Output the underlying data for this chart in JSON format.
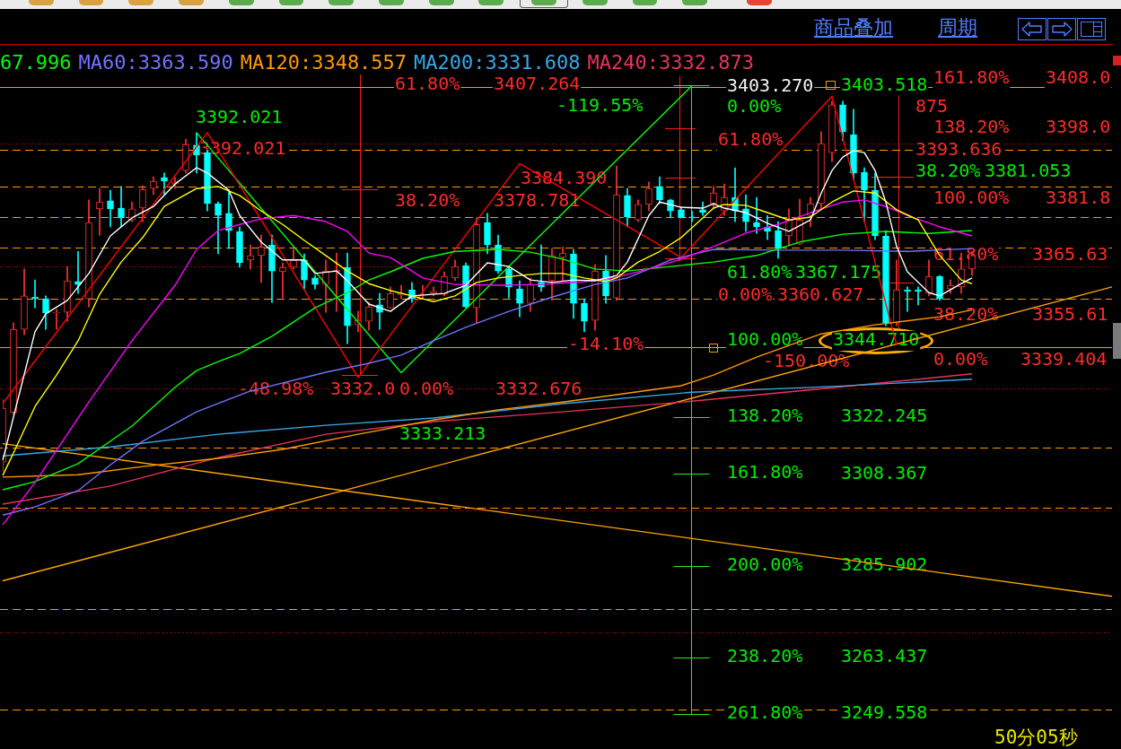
{
  "chart_data": {
    "type": "candlestick",
    "categories": [
      null,
      null,
      null,
      null,
      null,
      null,
      null,
      null,
      null,
      null,
      null,
      null,
      null,
      null,
      null,
      null,
      null,
      null,
      null,
      null,
      null,
      null,
      null,
      null,
      null,
      null,
      null,
      null,
      null,
      null,
      null,
      null,
      null,
      null,
      null,
      null,
      null,
      null,
      null,
      null,
      null,
      null,
      null,
      null,
      null,
      null,
      null,
      null,
      null,
      null,
      null,
      null,
      null,
      null,
      null,
      null,
      null,
      null,
      null,
      null,
      null,
      null,
      null,
      null,
      null,
      null,
      null,
      null,
      null,
      null,
      null,
      null,
      null,
      null,
      null,
      null,
      null,
      null,
      null,
      null,
      null,
      null,
      null,
      null,
      null,
      null,
      null,
      null,
      null,
      null,
      null,
      null,
      null,
      null,
      null,
      null,
      null,
      null,
      null,
      null,
      null,
      null,
      null,
      null
    ],
    "ohlc": [
      [
        3311.3,
        3326.7,
        3309.1,
        3324.5
      ],
      [
        3323.4,
        3345.4,
        3323.0,
        3343.8
      ],
      [
        3343.8,
        3358.6,
        3342.5,
        3352.0
      ],
      [
        3351.7,
        3355.9,
        3349.1,
        3351.3
      ],
      [
        3351.3,
        3352.0,
        3343.8,
        3347.8
      ],
      [
        3347.8,
        3348.7,
        3343.8,
        3348.0
      ],
      [
        3348.0,
        3359.2,
        3345.8,
        3355.7
      ],
      [
        3355.5,
        3362.9,
        3352.6,
        3354.8
      ],
      [
        3351.3,
        3375.5,
        3349.3,
        3370.0
      ],
      [
        3373.3,
        3378.3,
        3366.9,
        3375.0
      ],
      [
        3375.3,
        3377.9,
        3368.9,
        3373.3
      ],
      [
        3373.5,
        3378.8,
        3368.9,
        3371.1
      ],
      [
        3370.6,
        3375.0,
        3370.2,
        3373.3
      ],
      [
        3373.5,
        3379.0,
        3370.2,
        3378.1
      ],
      [
        3378.3,
        3381.2,
        3376.8,
        3380.1
      ],
      [
        3381.0,
        3382.1,
        3376.8,
        3380.1
      ],
      [
        3379.4,
        3381.0,
        3378.3,
        3379.9
      ],
      [
        3382.7,
        3390.4,
        3382.1,
        3389.1
      ],
      [
        3388.9,
        3392.0,
        3382.1,
        3386.5
      ],
      [
        3387.1,
        3387.6,
        3372.8,
        3374.6
      ],
      [
        3374.6,
        3375.0,
        3362.3,
        3371.7
      ],
      [
        3372.2,
        3377.7,
        3363.6,
        3368.0
      ],
      [
        3367.8,
        3368.9,
        3359.0,
        3360.1
      ],
      [
        3360.8,
        3364.5,
        3358.6,
        3361.9
      ],
      [
        3361.9,
        3366.9,
        3355.3,
        3364.0
      ],
      [
        3364.5,
        3366.9,
        3350.4,
        3358.1
      ],
      [
        3357.9,
        3360.1,
        3351.5,
        3359.0
      ],
      [
        3359.0,
        3364.0,
        3358.6,
        3360.8
      ],
      [
        3360.8,
        3362.3,
        3353.7,
        3355.9
      ],
      [
        3356.4,
        3357.0,
        3353.7,
        3354.8
      ],
      [
        3354.8,
        3360.8,
        3348.0,
        3358.1
      ],
      [
        3357.9,
        3362.5,
        3348.2,
        3358.3
      ],
      [
        3359.0,
        3362.5,
        3340.3,
        3344.7
      ],
      [
        3344.9,
        3348.2,
        3343.2,
        3346.0
      ],
      [
        3345.8,
        3350.4,
        3343.6,
        3349.3
      ],
      [
        3349.8,
        3352.6,
        3343.8,
        3348.0
      ],
      [
        3349.1,
        3354.2,
        3349.1,
        3352.6
      ],
      [
        3352.2,
        3354.6,
        3351.3,
        3352.6
      ],
      [
        3353.5,
        3355.3,
        3350.4,
        3351.3
      ],
      [
        3352.2,
        3354.6,
        3351.3,
        3352.4
      ],
      [
        3352.6,
        3354.2,
        3352.0,
        3353.1
      ],
      [
        3352.4,
        3357.9,
        3352.0,
        3356.8
      ],
      [
        3356.4,
        3360.8,
        3355.7,
        3359.2
      ],
      [
        3359.4,
        3360.1,
        3349.1,
        3349.3
      ],
      [
        3349.1,
        3371.1,
        3345.4,
        3369.5
      ],
      [
        3370.0,
        3372.2,
        3362.3,
        3364.5
      ],
      [
        3364.5,
        3366.9,
        3357.5,
        3358.1
      ],
      [
        3358.6,
        3359.2,
        3351.5,
        3354.2
      ],
      [
        3353.7,
        3355.7,
        3346.9,
        3350.2
      ],
      [
        3350.2,
        3356.4,
        3348.2,
        3354.8
      ],
      [
        3355.3,
        3364.5,
        3353.1,
        3354.2
      ],
      [
        3355.7,
        3363.6,
        3350.9,
        3361.9
      ],
      [
        3361.4,
        3364.0,
        3355.7,
        3362.5
      ],
      [
        3362.3,
        3363.4,
        3346.5,
        3350.2
      ],
      [
        3350.2,
        3351.3,
        3343.2,
        3345.8
      ],
      [
        3346.0,
        3359.7,
        3343.6,
        3358.1
      ],
      [
        3358.1,
        3361.9,
        3350.2,
        3352.0
      ],
      [
        3351.5,
        3383.8,
        3350.9,
        3376.8
      ],
      [
        3376.6,
        3378.3,
        3368.9,
        3371.3
      ],
      [
        3370.6,
        3375.5,
        3370.2,
        3374.4
      ],
      [
        3374.4,
        3379.9,
        3372.8,
        3378.3
      ],
      [
        3378.8,
        3381.2,
        3374.6,
        3375.5
      ],
      [
        3375.5,
        3375.7,
        3371.1,
        3372.8
      ],
      [
        3373.1,
        3373.9,
        3371.1,
        3371.1
      ],
      [
        3371.3,
        3372.8,
        3370.2,
        3371.1
      ],
      [
        3373.1,
        3375.0,
        3371.7,
        3372.4
      ],
      [
        3374.6,
        3378.8,
        3373.3,
        3377.2
      ],
      [
        3372.8,
        3379.4,
        3371.7,
        3376.1
      ],
      [
        3376.1,
        3383.4,
        3370.2,
        3372.8
      ],
      [
        3373.3,
        3376.8,
        3367.8,
        3370.2
      ],
      [
        3370.0,
        3376.1,
        3367.3,
        3368.9
      ],
      [
        3368.9,
        3371.7,
        3365.8,
        3367.8
      ],
      [
        3368.0,
        3370.2,
        3361.2,
        3363.6
      ],
      [
        3366.7,
        3373.3,
        3364.5,
        3370.6
      ],
      [
        3364.7,
        3375.7,
        3364.5,
        3370.6
      ],
      [
        3371.7,
        3376.1,
        3368.9,
        3374.6
      ],
      [
        3374.6,
        3392.2,
        3373.3,
        3389.3
      ],
      [
        3387.1,
        3399.7,
        3384.9,
        3398.8
      ],
      [
        3398.8,
        3399.7,
        3390.0,
        3392.2
      ],
      [
        3391.5,
        3397.7,
        3380.5,
        3382.1
      ],
      [
        3382.3,
        3383.4,
        3370.2,
        3377.9
      ],
      [
        3377.9,
        3382.1,
        3365.8,
        3366.7
      ],
      [
        3366.7,
        3368.0,
        3344.7,
        3345.4
      ],
      [
        3345.4,
        3360.8,
        3344.7,
        3353.5
      ],
      [
        3353.5,
        3354.2,
        3348.2,
        3353.1
      ],
      [
        3353.5,
        3354.2,
        3349.8,
        3353.1
      ],
      [
        3352.6,
        3360.8,
        3352.0,
        3356.8
      ],
      [
        3356.8,
        3357.0,
        3350.9,
        3351.3
      ],
      [
        3353.7,
        3355.9,
        3352.6,
        3354.6
      ],
      [
        3354.2,
        3362.5,
        3352.6,
        3358.6
      ],
      [
        3358.6,
        3362.9,
        3357.0,
        3361.9
      ],
      null,
      null,
      null,
      null,
      null,
      null,
      null,
      null,
      null,
      null,
      null,
      null,
      null
    ],
    "colors": [
      "#ff3232",
      "#ff3232",
      "#ff3232",
      "#00ffff",
      "#00ffff",
      "#ff3232",
      "#ff3232",
      "#00ffff",
      "#ff3232",
      "#ff3232",
      "#00ffff",
      "#00ffff",
      "#ff3232",
      "#ff3232",
      "#ff3232",
      "#00ffff",
      "#ff3232",
      "#ff3232",
      "#00ffff",
      "#00ffff",
      "#00ffff",
      "#00ffff",
      "#00ffff",
      "#ff3232",
      "#ff3232",
      "#00ffff",
      "#ff3232",
      "#ff3232",
      "#00ffff",
      "#00ffff",
      "#ff3232",
      "#ff3232",
      "#00ffff",
      "#ff3232",
      "#ff3232",
      "#00ffff",
      "#ff3232",
      "#ff3232",
      "#00ffff",
      "#ff3232",
      "#ff3232",
      "#ff3232",
      "#ff3232",
      "#00ffff",
      "#ff3232",
      "#00ffff",
      "#00ffff",
      "#00ffff",
      "#00ffff",
      "#ff3232",
      "#00ffff",
      "#ff3232",
      "#ff3232",
      "#00ffff",
      "#00ffff",
      "#ff3232",
      "#00ffff",
      "#ff3232",
      "#00ffff",
      "#ff3232",
      "#ff3232",
      "#00ffff",
      "#00ffff",
      "#00ffff",
      "#00ffff",
      "#00ffff",
      "#ff3232",
      "#ff3232",
      "#00ffff",
      "#00ffff",
      "#00ffff",
      "#00ffff",
      "#00ffff",
      "#ff3232",
      "#ff3232",
      "#ff3232",
      "#ff3232",
      "#ff3232",
      "#00ffff",
      "#00ffff",
      "#00ffff",
      "#00ffff",
      "#00ffff",
      "#ff3232",
      "#00ffff",
      "#00ffff",
      "#ff3232",
      "#00ffff",
      "#ff3232",
      "#ff3232",
      "#ff3232",
      null,
      null,
      null,
      null,
      null,
      null,
      null,
      null,
      null,
      null,
      null,
      null,
      null
    ],
    "ylim": [
      3241.0,
      3413.5
    ],
    "yticks": [
      3249.558,
      3263.437,
      3285.902,
      3308.367,
      3322.245,
      3403.518
    ],
    "tick_labels": "y",
    "legend": "top left",
    "series": [
      {
        "type": "line",
        "color": "#ffffff",
        "values": [
          3311.7,
          3322.3,
          null,
          3343.2,
          3347.6,
          null,
          3350.9,
          null,
          3357.5,
          null,
          3366.7,
          null,
          3371.1,
          null,
          3373.9,
          null,
          3379.4,
          null,
          3383.4,
          3382.1,
          null,
          3377.9,
          3371.7,
          null,
          3365.2,
          null,
          3360.8,
          null,
          3360.8,
          3357.5,
          null,
          3358.1,
          3355.7,
          null,
          3350.0,
          null,
          3348.2,
          null,
          3352.0,
          null,
          null,
          3352.6,
          null,
          3354.6,
          null,
          3360.1,
          null,
          3359.2,
          null,
          3355.9,
          null,
          3355.3,
          null,
          3355.9,
          null,
          3355.7,
          null,
          3357.0,
          3360.3,
          null,
          3371.7,
          3375.0,
          null,
          3373.7,
          null,
          3373.5,
          3374.6,
          3373.5,
          null,
          3372.4,
          null,
          3369.8,
          null,
          3367.8,
          null,
          3370.6,
          3377.2,
          3382.7,
          3386.0,
          3387.6,
          3387.1,
          3382.7,
          3375.0,
          3364.1,
          3357.9,
          null,
          3352.8,
          3352.0,
          null,
          3355.0,
          3356.4,
          null,
          null,
          null,
          null,
          null,
          null,
          null,
          null,
          null,
          null,
          null,
          null,
          null
        ]
      },
      {
        "type": "line",
        "color": "#ffff00",
        "values": [
          3308.0,
          3313.5,
          null,
          3324.9,
          null,
          3332.6,
          null,
          3341.0,
          null,
          3352.4,
          null,
          3360.3,
          null,
          3366.3,
          null,
          3373.9,
          null,
          null,
          3378.3,
          null,
          3378.8,
          null,
          3376.6,
          null,
          3372.8,
          null,
          3369.5,
          null,
          3365.6,
          null,
          3361.9,
          null,
          3358.1,
          null,
          3355.0,
          null,
          3353.3,
          null,
          3352.0,
          null,
          3350.6,
          null,
          3352.0,
          null,
          3355.3,
          null,
          3356.4,
          null,
          3357.0,
          null,
          3357.5,
          null,
          3357.5,
          null,
          3356.4,
          null,
          3355.5,
          3356.4,
          null,
          3360.3,
          null,
          3362.9,
          null,
          3366.3,
          null,
          3371.1,
          3373.5,
          3374.4,
          null,
          3374.2,
          null,
          3372.4,
          null,
          3370.6,
          null,
          3371.3,
          null,
          3375.0,
          null,
          3377.7,
          null,
          3377.2,
          null,
          3373.1,
          null,
          3370.6,
          null,
          3361.9,
          null,
          3355.9,
          3355.0,
          null,
          null,
          null,
          null,
          null,
          null,
          null,
          null,
          null,
          null,
          null,
          null,
          null
        ]
      },
      {
        "type": "line",
        "color": "#ff00ff",
        "values": [
          3295.9,
          null,
          null,
          3306.3,
          null,
          null,
          null,
          null,
          3326.0,
          null,
          null,
          null,
          3341.0,
          null,
          null,
          null,
          3354.6,
          null,
          3363.4,
          null,
          3368.0,
          null,
          3369.5,
          null,
          3370.9,
          null,
          null,
          3371.7,
          null,
          null,
          3370.2,
          null,
          3367.8,
          null,
          3362.5,
          null,
          3361.4,
          null,
          null,
          3356.4,
          null,
          null,
          3354.8,
          null,
          null,
          null,
          3354.6,
          null,
          null,
          null,
          3354.8,
          null,
          null,
          null,
          3355.5,
          null,
          null,
          3356.6,
          null,
          null,
          3358.6,
          null,
          null,
          3361.0,
          null,
          null,
          3364.1,
          null,
          null,
          3367.4,
          null,
          null,
          3369.5,
          null,
          null,
          3372.4,
          null,
          null,
          3375.0,
          null,
          3375.5,
          null,
          3373.9,
          null,
          3371.7,
          null,
          null,
          3368.9,
          null,
          null,
          3366.7,
          null,
          null,
          null,
          null,
          null,
          null,
          null,
          null,
          null,
          null,
          null,
          null,
          null
        ]
      },
      {
        "type": "line",
        "name": "67.996",
        "color": "#00ff00",
        "values": [
          3304.5,
          null,
          null,
          3306.5,
          null,
          null,
          null,
          3310.9,
          null,
          null,
          null,
          null,
          3320.1,
          null,
          null,
          null,
          3329.6,
          null,
          3333.7,
          null,
          3335.9,
          null,
          3337.9,
          null,
          null,
          3342.1,
          null,
          null,
          null,
          3349.1,
          null,
          null,
          3352.8,
          null,
          3355.9,
          null,
          3357.9,
          null,
          null,
          3361.2,
          null,
          null,
          3362.9,
          null,
          null,
          null,
          3363.4,
          null,
          null,
          3362.7,
          null,
          null,
          3361.0,
          null,
          null,
          3358.6,
          null,
          null,
          3358.1,
          null,
          null,
          null,
          3359.2,
          null,
          null,
          null,
          3360.3,
          null,
          null,
          null,
          3361.9,
          null,
          null,
          null,
          3365.2,
          null,
          null,
          null,
          3367.1,
          null,
          null,
          null,
          3367.8,
          null,
          null,
          null,
          3367.3,
          null,
          null,
          null,
          3368.0,
          null,
          null,
          null,
          null,
          null,
          null,
          null,
          null,
          null,
          null,
          null,
          null,
          null
        ]
      },
      {
        "type": "line",
        "name": "MA60:3363.590",
        "color": "#7272ff",
        "values": [
          3298.3,
          null,
          null,
          3300.3,
          null,
          null,
          null,
          3304.3,
          null,
          null,
          3310.6,
          null,
          null,
          3316.4,
          null,
          null,
          null,
          null,
          3323.6,
          null,
          null,
          null,
          null,
          3328.7,
          null,
          null,
          null,
          null,
          null,
          null,
          3333.3,
          null,
          null,
          null,
          3335.5,
          null,
          null,
          3337.5,
          null,
          null,
          3341.0,
          null,
          null,
          3344.3,
          null,
          null,
          null,
          3348.2,
          null,
          null,
          null,
          3351.7,
          null,
          null,
          null,
          3354.8,
          null,
          null,
          3356.4,
          null,
          null,
          null,
          3360.8,
          null,
          null,
          null,
          3363.4,
          null,
          null,
          null,
          null,
          null,
          3363.2,
          null,
          null,
          null,
          null,
          null,
          3363.2,
          null,
          null,
          null,
          null,
          null,
          3362.9,
          null,
          null,
          null,
          null,
          null,
          3363.6,
          null,
          null,
          null,
          null,
          null,
          null,
          null,
          null,
          null,
          null,
          null,
          null,
          null
        ]
      },
      {
        "type": "line",
        "name": "MA120:3348.557",
        "color": "#ff9a00",
        "values": [
          3307.6,
          null,
          null,
          null,
          null,
          null,
          null,
          3308.2,
          null,
          null,
          null,
          null,
          null,
          3310.2,
          null,
          null,
          null,
          null,
          null,
          null,
          3312.2,
          null,
          null,
          null,
          null,
          null,
          3314.4,
          null,
          null,
          null,
          null,
          null,
          null,
          3318.1,
          null,
          null,
          null,
          null,
          null,
          null,
          3321.6,
          null,
          null,
          null,
          null,
          null,
          3324.1,
          null,
          null,
          null,
          null,
          null,
          3326.0,
          null,
          null,
          null,
          null,
          3327.8,
          null,
          null,
          null,
          null,
          null,
          3330.0,
          null,
          null,
          3332.6,
          null,
          null,
          null,
          3337.0,
          null,
          null,
          null,
          null,
          null,
          3342.7,
          null,
          null,
          null,
          null,
          3344.9,
          null,
          null,
          null,
          null,
          null,
          3346.9,
          null,
          null,
          3348.6,
          null,
          null,
          null,
          null,
          null,
          null,
          null,
          null,
          null,
          null,
          null,
          null,
          null
        ]
      },
      {
        "type": "line",
        "name": "MA200:3331.608",
        "color": "#36a8e8",
        "values": [
          3312.8,
          null,
          null,
          null,
          null,
          null,
          null,
          null,
          null,
          null,
          3315.0,
          null,
          null,
          null,
          null,
          null,
          null,
          null,
          null,
          null,
          3318.1,
          null,
          null,
          null,
          null,
          null,
          null,
          null,
          null,
          null,
          3320.3,
          null,
          null,
          null,
          null,
          null,
          null,
          null,
          null,
          null,
          3322.1,
          null,
          null,
          null,
          null,
          null,
          null,
          null,
          null,
          null,
          null,
          null,
          3325.6,
          null,
          null,
          null,
          null,
          null,
          null,
          null,
          null,
          null,
          null,
          null,
          3328.4,
          null,
          null,
          null,
          null,
          null,
          null,
          null,
          null,
          null,
          null,
          null,
          null,
          3329.8,
          null,
          null,
          null,
          null,
          null,
          null,
          null,
          null,
          null,
          null,
          null,
          null,
          3331.6,
          null,
          null,
          null,
          null,
          null,
          null,
          null,
          null,
          null,
          null,
          null,
          null,
          null
        ]
      },
      {
        "type": "line",
        "name": "MA240:3332.873",
        "color": "#e8335e",
        "values": [
          3301.0,
          null,
          null,
          null,
          null,
          null,
          null,
          null,
          null,
          null,
          3305.4,
          null,
          null,
          null,
          null,
          null,
          null,
          null,
          null,
          null,
          3312.4,
          null,
          null,
          null,
          null,
          null,
          null,
          null,
          null,
          null,
          3318.1,
          null,
          null,
          null,
          null,
          null,
          null,
          null,
          null,
          null,
          3321.2,
          null,
          null,
          null,
          null,
          null,
          null,
          null,
          null,
          null,
          null,
          null,
          3323.6,
          null,
          null,
          null,
          null,
          null,
          null,
          null,
          null,
          null,
          null,
          null,
          3326.2,
          null,
          null,
          null,
          null,
          null,
          null,
          null,
          null,
          null,
          null,
          null,
          null,
          3329.5,
          null,
          null,
          null,
          null,
          null,
          null,
          null,
          null,
          null,
          null,
          null,
          null,
          3332.9,
          null,
          null,
          null,
          null,
          null,
          null,
          null,
          null,
          null,
          null,
          null,
          null,
          null
        ]
      },
      {
        "type": "line",
        "color": "#ff0000",
        "values": [
          3325.6,
          null,
          null,
          null,
          null,
          null,
          null,
          null,
          null,
          null,
          null,
          null,
          null,
          null,
          null,
          null,
          null,
          null,
          null,
          3392.0,
          null,
          null,
          null,
          null,
          null,
          null,
          null,
          null,
          null,
          null,
          null,
          null,
          null,
          3332.0,
          null,
          null,
          null,
          null,
          null,
          null,
          null,
          null,
          null,
          null,
          null,
          null,
          null,
          null,
          3384.4,
          null,
          null,
          null,
          null,
          null,
          null,
          null,
          null,
          null,
          null,
          null,
          null,
          null,
          null,
          3361.4,
          null,
          null,
          null,
          null,
          null,
          null,
          null,
          null,
          null,
          null,
          null,
          null,
          null,
          3400.9,
          null,
          null,
          null,
          null,
          null,
          3339.9,
          null,
          null,
          null,
          null,
          null,
          null,
          null,
          null,
          null,
          null,
          null,
          null,
          null,
          null,
          null,
          null,
          null,
          null,
          null,
          null
        ]
      },
      {
        "type": "line",
        "color": "#00ff00",
        "values": [
          null,
          null,
          null,
          null,
          null,
          null,
          null,
          null,
          null,
          null,
          null,
          null,
          null,
          null,
          null,
          null,
          null,
          null,
          3392.0,
          null,
          null,
          null,
          null,
          null,
          null,
          null,
          null,
          null,
          null,
          null,
          null,
          null,
          null,
          null,
          null,
          null,
          null,
          3333.2,
          null,
          null,
          null,
          null,
          null,
          null,
          null,
          null,
          null,
          null,
          null,
          null,
          null,
          null,
          null,
          null,
          null,
          null,
          null,
          null,
          null,
          null,
          null,
          null,
          null,
          null,
          3403.5,
          null,
          null,
          null,
          null,
          null,
          null,
          null,
          null,
          null,
          null,
          null,
          null,
          null,
          null,
          null,
          null,
          null,
          null,
          null,
          null,
          null,
          null,
          null,
          null,
          null,
          null,
          null,
          null,
          null,
          null,
          null,
          null,
          null,
          null,
          null,
          null,
          null,
          null,
          null
        ]
      },
      {
        "type": "line",
        "color": "#ffa500",
        "values": [
          3315.8,
          null,
          null,
          null,
          null,
          null,
          null,
          null,
          null,
          null,
          null,
          null,
          null,
          null,
          null,
          null,
          null,
          null,
          null,
          null,
          null,
          null,
          null,
          null,
          null,
          null,
          null,
          null,
          null,
          null,
          null,
          null,
          null,
          null,
          null,
          null,
          null,
          null,
          null,
          null,
          null,
          null,
          null,
          null,
          null,
          null,
          null,
          null,
          null,
          null,
          null,
          null,
          null,
          null,
          null,
          null,
          null,
          null,
          null,
          null,
          null,
          null,
          null,
          null,
          null,
          null,
          null,
          null,
          null,
          null,
          null,
          null,
          null,
          null,
          null,
          null,
          null,
          null,
          null,
          null,
          null,
          null,
          null,
          null,
          null,
          null,
          null,
          null,
          null,
          null,
          null,
          null,
          null,
          null,
          null,
          null,
          null,
          null,
          null,
          null,
          null,
          null,
          null,
          3278.4
        ]
      },
      {
        "type": "line",
        "color": "#ffa500",
        "values": [
          3282.2,
          null,
          null,
          null,
          null,
          null,
          null,
          null,
          null,
          null,
          null,
          null,
          null,
          null,
          null,
          null,
          null,
          null,
          null,
          null,
          null,
          null,
          null,
          null,
          null,
          null,
          null,
          null,
          null,
          null,
          null,
          null,
          null,
          null,
          null,
          null,
          null,
          null,
          null,
          null,
          null,
          null,
          null,
          null,
          null,
          null,
          null,
          null,
          null,
          null,
          null,
          null,
          null,
          null,
          null,
          null,
          null,
          null,
          null,
          null,
          null,
          null,
          null,
          null,
          null,
          null,
          null,
          null,
          null,
          null,
          null,
          null,
          null,
          null,
          null,
          null,
          null,
          null,
          null,
          null,
          null,
          null,
          null,
          null,
          null,
          null,
          null,
          null,
          null,
          null,
          null,
          null,
          null,
          null,
          null,
          null,
          null,
          null,
          null,
          null,
          null,
          null,
          null,
          3354.2
        ]
      }
    ],
    "ref_lines": [
      {
        "axis": "y",
        "value": 3403.27,
        "color": "#ff9900",
        "line_style": "solid",
        "label": "3403.270"
      },
      {
        "axis": "y",
        "value": 3339.404,
        "color": "#ff9900",
        "line_style": "solid"
      },
      {
        "axis": "y",
        "value": 3387.8,
        "color": "#ff9900",
        "line_style": "dashed"
      },
      {
        "axis": "y",
        "value": 3378.8,
        "color": "#ff9900",
        "line_style": "dashed"
      },
      {
        "axis": "y",
        "value": 3371.3,
        "color": "#ff9900",
        "line_style": "dashed"
      },
      {
        "axis": "y",
        "value": 3363.8,
        "color": "#ff9900",
        "line_style": "dashed"
      },
      {
        "axis": "y",
        "value": 3351.3,
        "color": "#ff9900",
        "line_style": "dashed"
      },
      {
        "axis": "y",
        "value": 3314.8,
        "color": "#ff9900",
        "line_style": "dashed"
      },
      {
        "axis": "y",
        "value": 3300.1,
        "color": "#ff9900",
        "line_style": "dashed"
      },
      {
        "axis": "y",
        "value": 3275.3,
        "color": "#ff9900",
        "line_style": "dashed"
      },
      {
        "axis": "y",
        "value": 3250.6,
        "color": "#ff9900",
        "line_style": "dashed"
      },
      {
        "axis": "y",
        "value": 3389.3,
        "color": "#c80000",
        "line_style": "dotted"
      },
      {
        "axis": "y",
        "value": 3359.2,
        "color": "#c80000",
        "line_style": "dotted"
      },
      {
        "axis": "y",
        "value": 3329.3,
        "color": "#c80000",
        "line_style": "dotted"
      },
      {
        "axis": "y",
        "value": 3299.4,
        "color": "#c80000",
        "line_style": "dotted"
      },
      {
        "axis": "y",
        "value": 3269.6,
        "color": "#c80000",
        "line_style": "dotted"
      }
    ],
    "annotations": [
      "61.80%",
      "3407.264",
      "38.20%",
      "3378.781",
      "0.00%",
      "3332.676",
      "3392.021",
      "-48.98%",
      "3332.0",
      "3384.390",
      "875",
      "-14.10%",
      "-119.55%",
      "0.00%",
      "38.20%",
      "3381.053",
      "61.80%",
      "3367.175",
      "100.00%",
      "3344.710",
      "138.20%",
      "161.80%",
      "200.00%",
      "238.20%",
      "261.80%",
      "3392.021",
      "3333.213",
      "61.80%",
      "3393.636",
      "0.00%",
      "3360.627",
      "-150.00%",
      "161.80%",
      "3408.0",
      "138.20%",
      "3398.0",
      "100.00%",
      "3381.8",
      "61.80%",
      "3365.63",
      "38.20%",
      "3355.61",
      "0.00%",
      "3339.404",
      "商品叠加",
      "周期",
      "50分05秒"
    ]
  }
}
